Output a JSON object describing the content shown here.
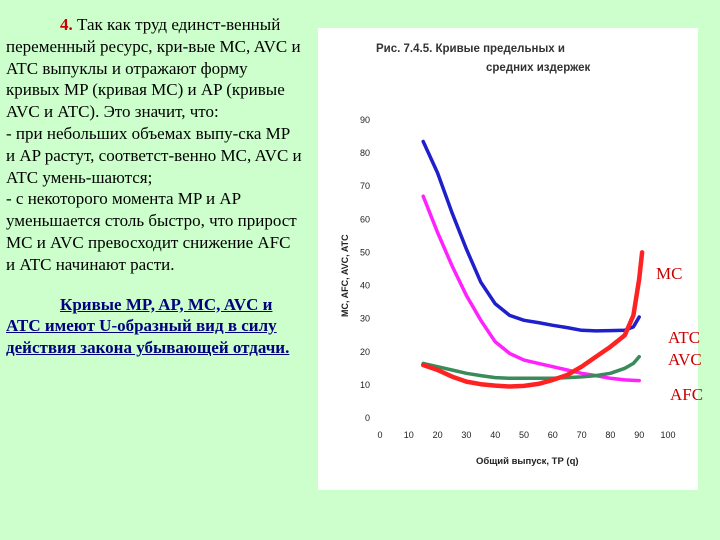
{
  "text": {
    "p1_num": "4.",
    "p1_text": "Так как труд единст-венный переменный ресурс, кри-вые MC, AVC и ATC выпуклы и отражают форму кривых MP (кривая MC) и AP (кривые AVC и ATC). Это значит, что:",
    "p2": "- при небольших объемах выпу-ска MP и AP растут, соответст-венно MC, AVC и ATC умень-шаются;",
    "p3": " - с некоторого момента MP и AP уменьшается столь быстро, что прирост MC и AVC превосходит снижение AFC и ATC начинают расти.",
    "p4": "Кривые MP, AP, MC, AVC и ATC имеют U-образный вид в силу действия закона убывающей отдачи."
  },
  "labels": {
    "mc": "MC",
    "atc": "ATC",
    "avc": "AVC",
    "afc": "AFC"
  },
  "colors": {
    "background": "#ccffcc",
    "text_accent": "#cc0000",
    "link_text": "#000080",
    "atc": "#1f1fcc",
    "afc": "#ff22ff",
    "mc": "#ff2222",
    "avc": "#3a8a5a"
  },
  "chart_data": {
    "type": "line",
    "title": "Рис. 7.4.5. Кривые предельных и средних издержек",
    "xlabel": "Общий выпуск, ТР (q)",
    "ylabel": "MC, AFC, AVC, ATC",
    "xlim": [
      0,
      100
    ],
    "ylim": [
      0,
      90
    ],
    "xticks": [
      0,
      10,
      20,
      30,
      40,
      50,
      60,
      70,
      80,
      90,
      100
    ],
    "yticks": [
      0,
      10,
      20,
      30,
      40,
      50,
      60,
      70,
      80,
      90
    ],
    "grid": false,
    "series": [
      {
        "name": "ATC",
        "color": "#1f1fcc",
        "points": [
          [
            15,
            83.5
          ],
          [
            20,
            74
          ],
          [
            25,
            62
          ],
          [
            30,
            51
          ],
          [
            35,
            41
          ],
          [
            40,
            34.5
          ],
          [
            45,
            31
          ],
          [
            50,
            29.5
          ],
          [
            55,
            28.8
          ],
          [
            60,
            28
          ],
          [
            65,
            27.3
          ],
          [
            70,
            26.5
          ],
          [
            75,
            26.3
          ],
          [
            80,
            26.4
          ],
          [
            85,
            26.5
          ],
          [
            88,
            27.5
          ],
          [
            90,
            30.5
          ]
        ]
      },
      {
        "name": "AFC",
        "color": "#ff22ff",
        "points": [
          [
            15,
            67
          ],
          [
            20,
            56
          ],
          [
            25,
            46
          ],
          [
            30,
            37
          ],
          [
            35,
            29.5
          ],
          [
            40,
            23
          ],
          [
            45,
            19.5
          ],
          [
            50,
            17.5
          ],
          [
            55,
            16.5
          ],
          [
            60,
            15.5
          ],
          [
            65,
            14.5
          ],
          [
            70,
            13.5
          ],
          [
            75,
            12.8
          ],
          [
            80,
            12
          ],
          [
            85,
            11.5
          ],
          [
            90,
            11.3
          ]
        ]
      },
      {
        "name": "AVC",
        "color": "#3a8a5a",
        "points": [
          [
            15,
            16.5
          ],
          [
            20,
            15.5
          ],
          [
            25,
            14.5
          ],
          [
            30,
            13.5
          ],
          [
            35,
            12.8
          ],
          [
            40,
            12.2
          ],
          [
            45,
            12
          ],
          [
            50,
            12
          ],
          [
            55,
            12
          ],
          [
            60,
            12
          ],
          [
            65,
            12.2
          ],
          [
            70,
            12.4
          ],
          [
            75,
            12.8
          ],
          [
            80,
            13.5
          ],
          [
            85,
            15
          ],
          [
            88,
            16.5
          ],
          [
            90,
            18.5
          ]
        ]
      },
      {
        "name": "MC",
        "color": "#ff2222",
        "points": [
          [
            15,
            16
          ],
          [
            20,
            14.5
          ],
          [
            25,
            12.5
          ],
          [
            30,
            11
          ],
          [
            35,
            10.2
          ],
          [
            40,
            9.8
          ],
          [
            45,
            9.5
          ],
          [
            50,
            9.7
          ],
          [
            55,
            10.3
          ],
          [
            60,
            11.5
          ],
          [
            65,
            13
          ],
          [
            70,
            15.5
          ],
          [
            75,
            18.5
          ],
          [
            80,
            21.5
          ],
          [
            85,
            25
          ],
          [
            88,
            31
          ],
          [
            90,
            42
          ],
          [
            91,
            50
          ]
        ]
      }
    ]
  }
}
